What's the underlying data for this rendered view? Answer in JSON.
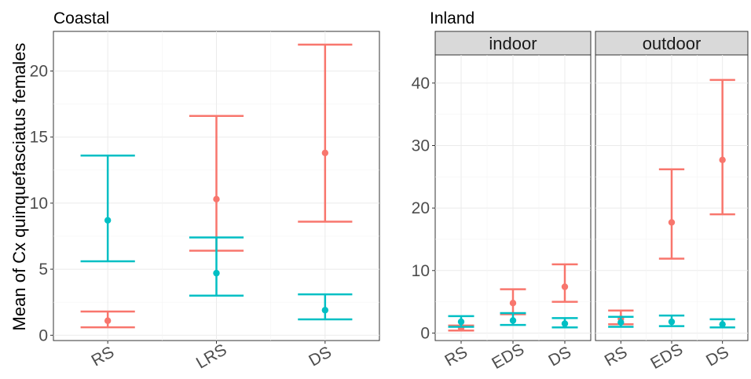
{
  "chart_data": [
    {
      "type": "errorbar",
      "title": "Coastal",
      "ylabel": "Mean of Cx quinquefasciatus females",
      "xlabel": "",
      "categories": [
        "RS",
        "LRS",
        "DS"
      ],
      "ylim": [
        -0.4,
        23.0
      ],
      "yticks": [
        0,
        5,
        10,
        15,
        20
      ],
      "grid": true,
      "series": [
        {
          "color": "#F8766D",
          "mean": [
            1.1,
            10.3,
            13.8
          ],
          "lower": [
            0.6,
            6.4,
            8.6
          ],
          "upper": [
            1.8,
            16.6,
            22.0
          ]
        },
        {
          "color": "#00BFC4",
          "mean": [
            8.7,
            4.7,
            1.9
          ],
          "lower": [
            5.6,
            3.0,
            1.2
          ],
          "upper": [
            13.6,
            7.4,
            3.1
          ]
        }
      ]
    },
    {
      "type": "errorbar",
      "title": "Inland",
      "facets": [
        "indoor",
        "outdoor"
      ],
      "categories": [
        "RS",
        "EDS",
        "DS"
      ],
      "ylim": [
        -1.2,
        44.5
      ],
      "yticks": [
        0,
        10,
        20,
        30,
        40
      ],
      "grid": true,
      "panels": [
        {
          "facet": "indoor",
          "series": [
            {
              "color": "#F8766D",
              "mean": [
                0.8,
                4.8,
                7.4
              ],
              "lower": [
                0.4,
                3.0,
                5.0
              ],
              "upper": [
                1.2,
                7.0,
                11.0
              ]
            },
            {
              "color": "#00BFC4",
              "mean": [
                1.8,
                2.0,
                1.5
              ],
              "lower": [
                1.0,
                1.3,
                0.9
              ],
              "upper": [
                2.7,
                3.2,
                2.4
              ]
            }
          ]
        },
        {
          "facet": "outdoor",
          "series": [
            {
              "color": "#F8766D",
              "mean": [
                2.3,
                17.7,
                27.7
              ],
              "lower": [
                1.4,
                11.9,
                19.0
              ],
              "upper": [
                3.6,
                26.2,
                40.5
              ]
            },
            {
              "color": "#00BFC4",
              "mean": [
                1.7,
                1.8,
                1.4
              ],
              "lower": [
                1.0,
                1.1,
                0.9
              ],
              "upper": [
                2.6,
                2.8,
                2.2
              ]
            }
          ]
        }
      ]
    }
  ]
}
